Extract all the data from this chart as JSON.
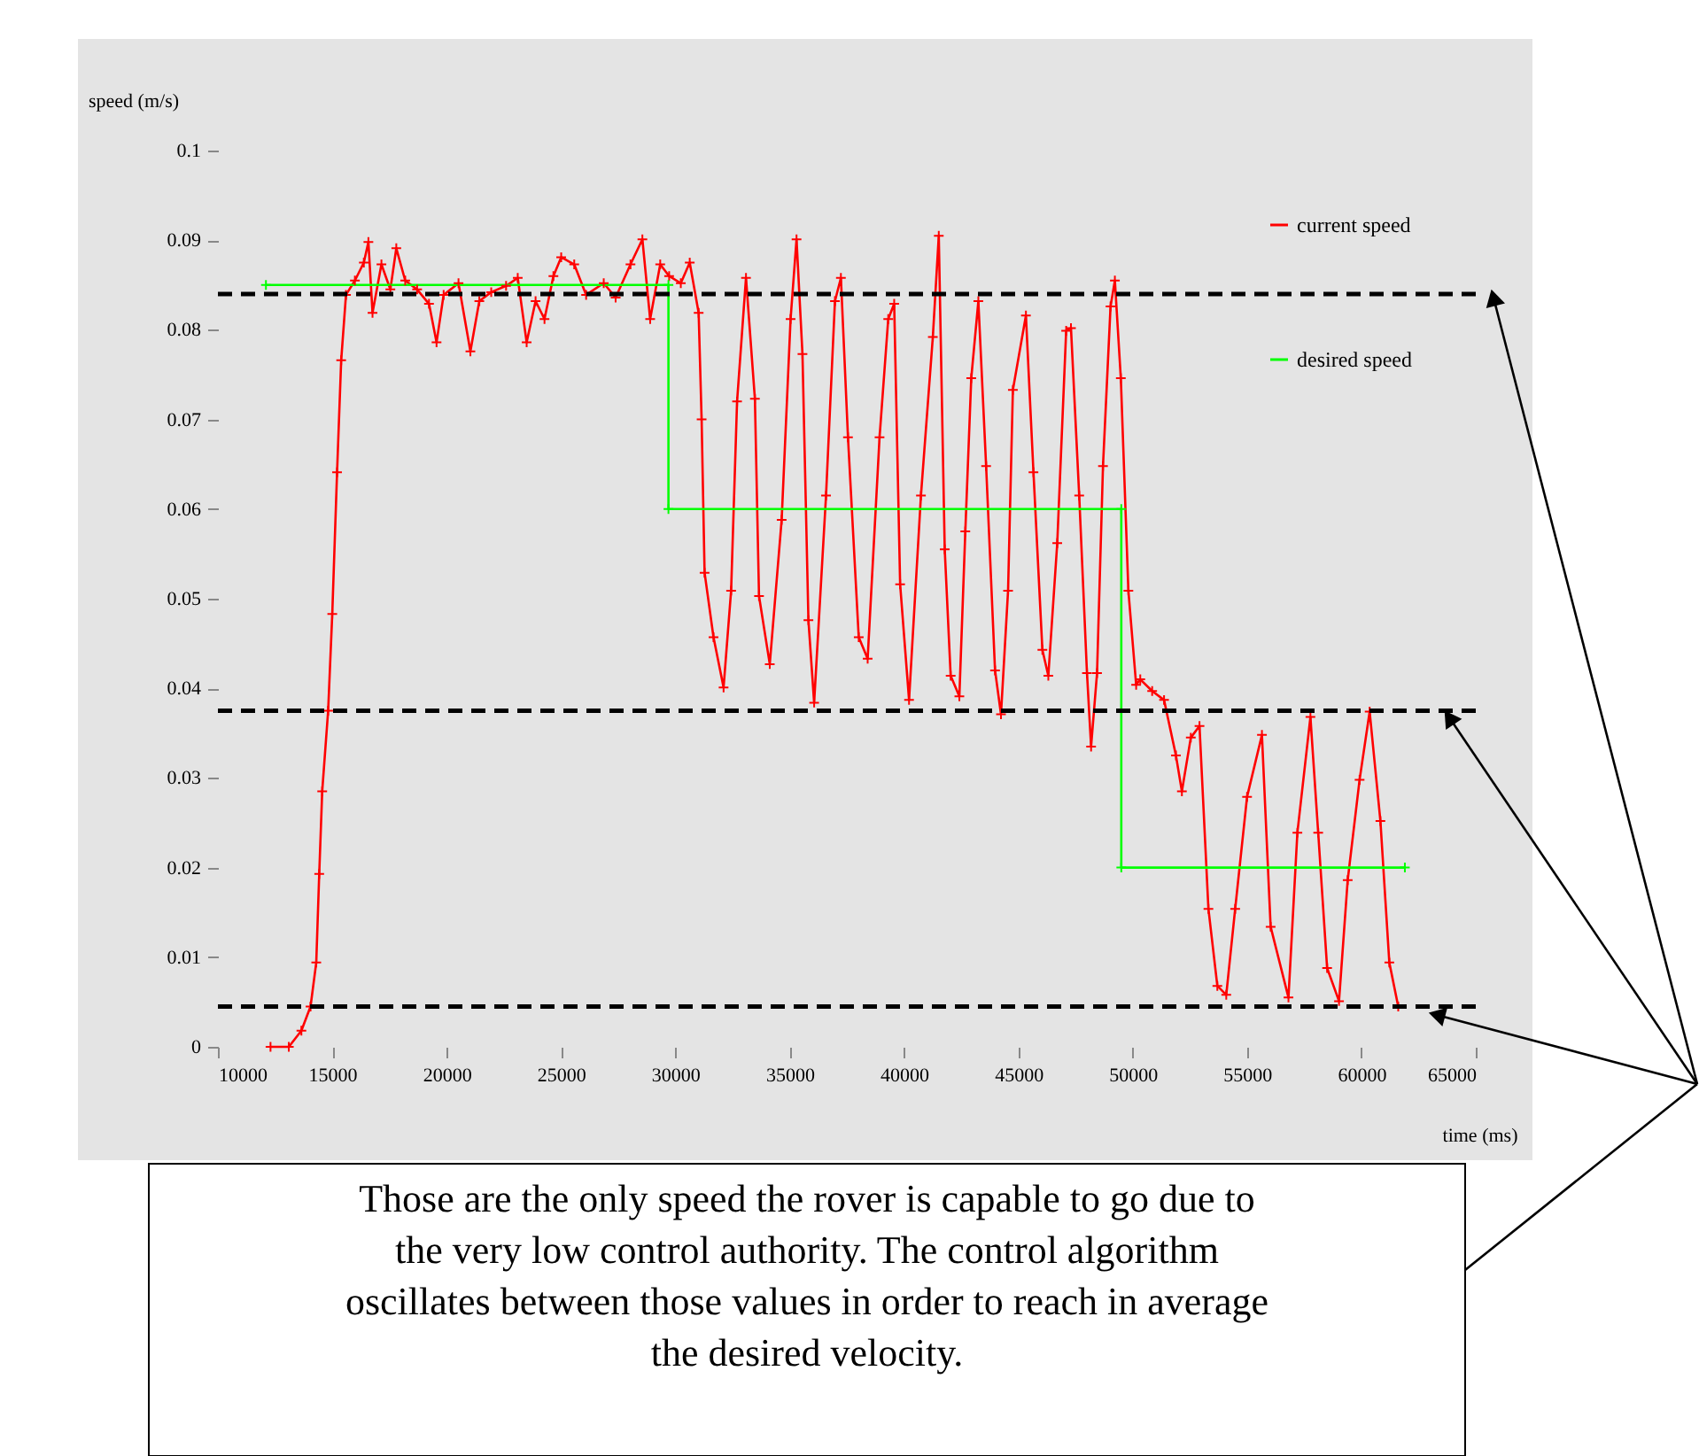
{
  "chart_data": {
    "type": "line",
    "xlabel": "time (ms)",
    "ylabel": "speed (m/s)",
    "xlim": [
      10000,
      65000
    ],
    "xticks": [
      10000,
      15000,
      20000,
      25000,
      30000,
      35000,
      40000,
      45000,
      50000,
      55000,
      60000,
      65000
    ],
    "ylim": [
      0,
      0.1
    ],
    "yticks": [
      0,
      0.01,
      0.02,
      0.03,
      0.04,
      0.05,
      0.06,
      0.07,
      0.08,
      0.09,
      0.1
    ],
    "grid": false,
    "legend": "top right",
    "marker": "cross",
    "line_style": "solid",
    "series": [
      {
        "name": "current speed",
        "color": "#ff0000",
        "x": [
          12300,
          13100,
          13650,
          14050,
          14300,
          14430,
          14560,
          14820,
          15000,
          15210,
          15390,
          15600,
          15990,
          16380,
          16580,
          16760,
          17150,
          17540,
          17800,
          18190,
          18710,
          19230,
          19560,
          19870,
          20520,
          21040,
          21430,
          21950,
          22600,
          23110,
          23500,
          23890,
          24280,
          24670,
          25010,
          25580,
          26100,
          26870,
          27390,
          28040,
          28560,
          28900,
          29340,
          29730,
          30240,
          30630,
          31020,
          31150,
          31280,
          31670,
          32110,
          32440,
          32700,
          33090,
          33480,
          33660,
          34130,
          34650,
          35040,
          35300,
          35560,
          35820,
          36070,
          36590,
          36980,
          37240,
          37550,
          38020,
          38410,
          38930,
          39310,
          39570,
          39830,
          40220,
          40740,
          41260,
          41520,
          41780,
          42040,
          42420,
          42680,
          42940,
          43250,
          43590,
          43980,
          44240,
          44550,
          44760,
          45330,
          45660,
          46050,
          46310,
          46700,
          47090,
          47300,
          47660,
          48000,
          48180,
          48440,
          48700,
          49030,
          49220,
          49480,
          49810,
          50150,
          50330,
          50850,
          51370,
          51890,
          52150,
          52540,
          52920,
          53310,
          53700,
          54090,
          54480,
          55000,
          55650,
          56030,
          56810,
          57200,
          57770,
          58110,
          58500,
          59020,
          59400,
          59920,
          60360,
          60830,
          61220,
          61610
        ],
        "values": [
          0,
          0,
          0.0018,
          0.0045,
          0.0094,
          0.0193,
          0.0285,
          0.0375,
          0.0483,
          0.0641,
          0.0766,
          0.0839,
          0.0855,
          0.0875,
          0.0898,
          0.0819,
          0.0873,
          0.0845,
          0.0891,
          0.0855,
          0.0845,
          0.0829,
          0.0786,
          0.0839,
          0.0852,
          0.0776,
          0.0832,
          0.0842,
          0.0849,
          0.0858,
          0.0786,
          0.0832,
          0.0812,
          0.086,
          0.0881,
          0.0873,
          0.0839,
          0.0852,
          0.0836,
          0.0873,
          0.0901,
          0.0812,
          0.0873,
          0.086,
          0.0852,
          0.0875,
          0.0819,
          0.07,
          0.0529,
          0.0457,
          0.0401,
          0.0509,
          0.072,
          0.0858,
          0.0723,
          0.0503,
          0.0427,
          0.0588,
          0.0812,
          0.0901,
          0.0773,
          0.0476,
          0.0384,
          0.0615,
          0.0832,
          0.0858,
          0.068,
          0.0457,
          0.0433,
          0.068,
          0.0812,
          0.0829,
          0.0516,
          0.0387,
          0.0615,
          0.0792,
          0.0905,
          0.0555,
          0.0414,
          0.0391,
          0.0575,
          0.0746,
          0.0832,
          0.0648,
          0.042,
          0.0371,
          0.0509,
          0.0733,
          0.0816,
          0.0641,
          0.0443,
          0.0414,
          0.0562,
          0.0799,
          0.0802,
          0.0615,
          0.0417,
          0.0335,
          0.0417,
          0.0648,
          0.0826,
          0.0855,
          0.0746,
          0.0509,
          0.0404,
          0.041,
          0.0397,
          0.0387,
          0.0325,
          0.0285,
          0.0345,
          0.0358,
          0.0154,
          0.0068,
          0.0058,
          0.0154,
          0.0279,
          0.0348,
          0.0134,
          0.0055,
          0.0239,
          0.0368,
          0.0239,
          0.0088,
          0.0051,
          0.0186,
          0.0298,
          0.0374,
          0.0252,
          0.0094,
          0.0045
        ]
      },
      {
        "name": "desired speed",
        "color": "#00ff00",
        "x": [
          12100,
          29700,
          29700,
          49500,
          49500,
          61900
        ],
        "values": [
          0.085,
          0.085,
          0.06,
          0.06,
          0.02,
          0.02
        ]
      }
    ],
    "ref_lines": [
      {
        "axis": "y",
        "value": 0.084,
        "color": "#000000",
        "line_style": "dashed"
      },
      {
        "axis": "y",
        "value": 0.0375,
        "color": "#000000",
        "line_style": "dashed"
      },
      {
        "axis": "y",
        "value": 0.0045,
        "color": "#000000",
        "line_style": "dashed"
      }
    ],
    "annotations": [
      "Those are the only speed the rover is capable to go due to\nthe very low control authority. The control algorithm\noscillates between those values in order to reach in average\nthe desired velocity."
    ]
  }
}
